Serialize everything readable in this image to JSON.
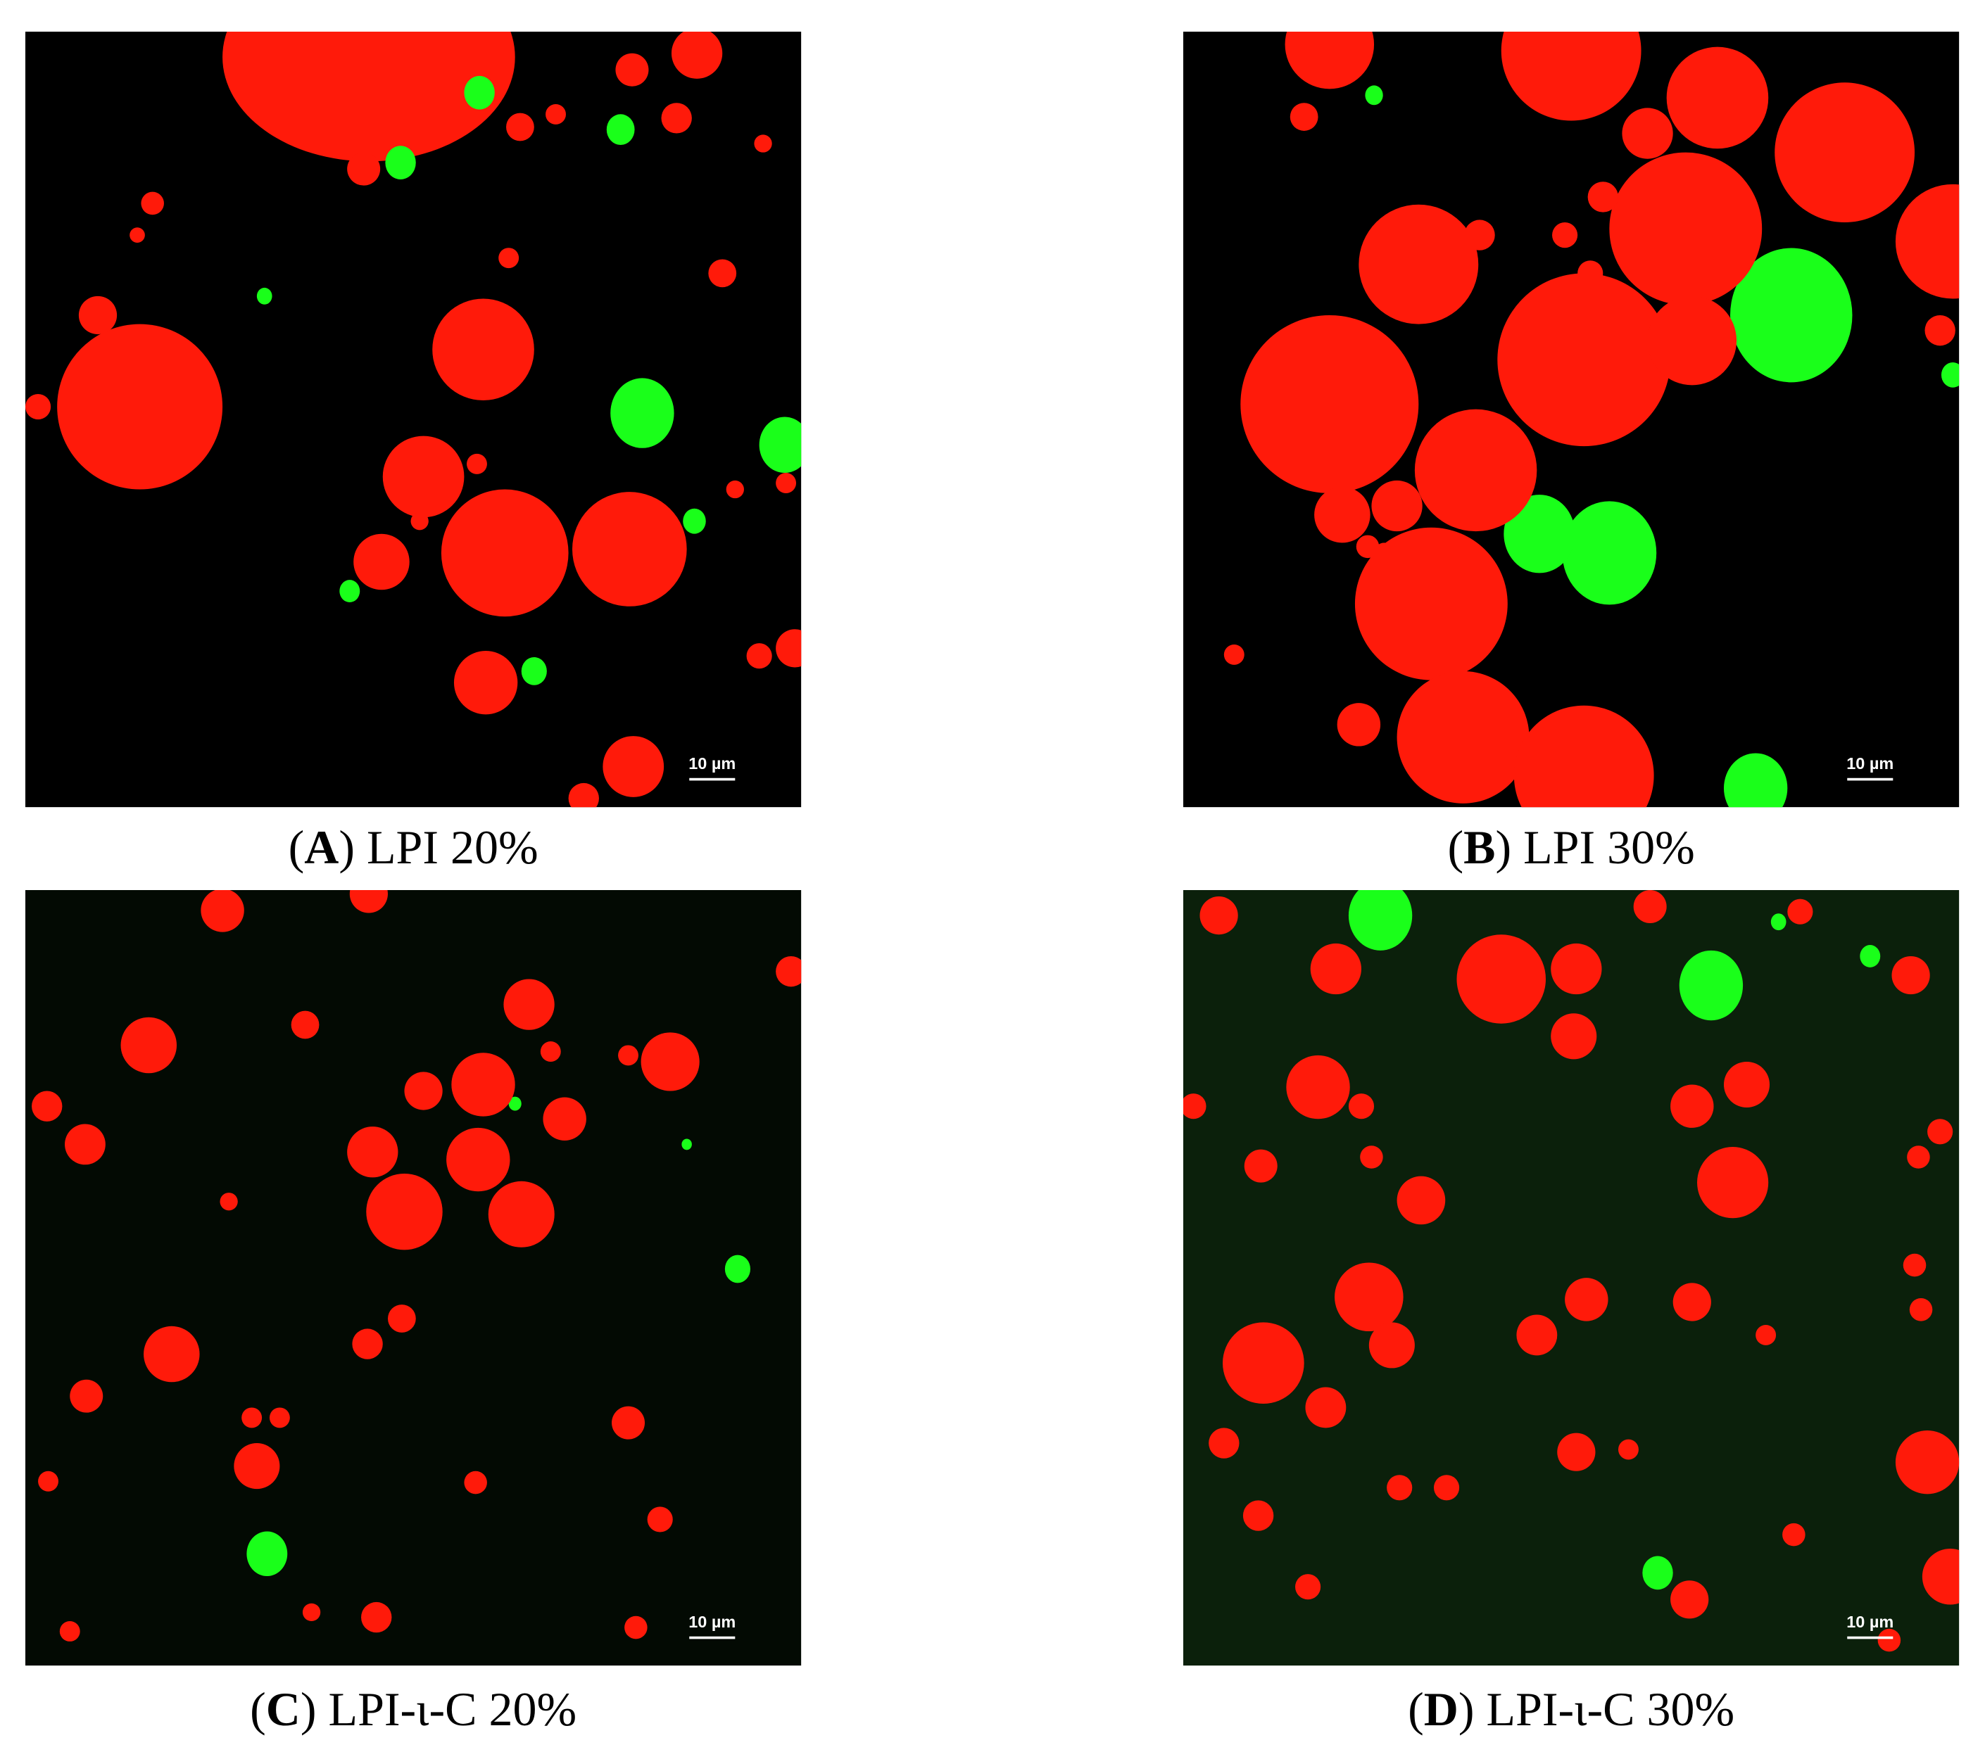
{
  "panels": [
    {
      "caption": [
        "(",
        "A",
        ") LPI 20%"
      ],
      "scale_bar": "10 µm"
    },
    {
      "caption": [
        "(",
        "B",
        ") LPI 30%"
      ],
      "scale_bar": "10 µm"
    },
    {
      "caption": [
        "(",
        "C",
        ") LPI-ι-C 20%"
      ],
      "scale_bar": "10 µm"
    },
    {
      "caption": [
        "(",
        "D",
        ") LPI-ι-C 30%"
      ],
      "scale_bar": "10 µm"
    }
  ]
}
